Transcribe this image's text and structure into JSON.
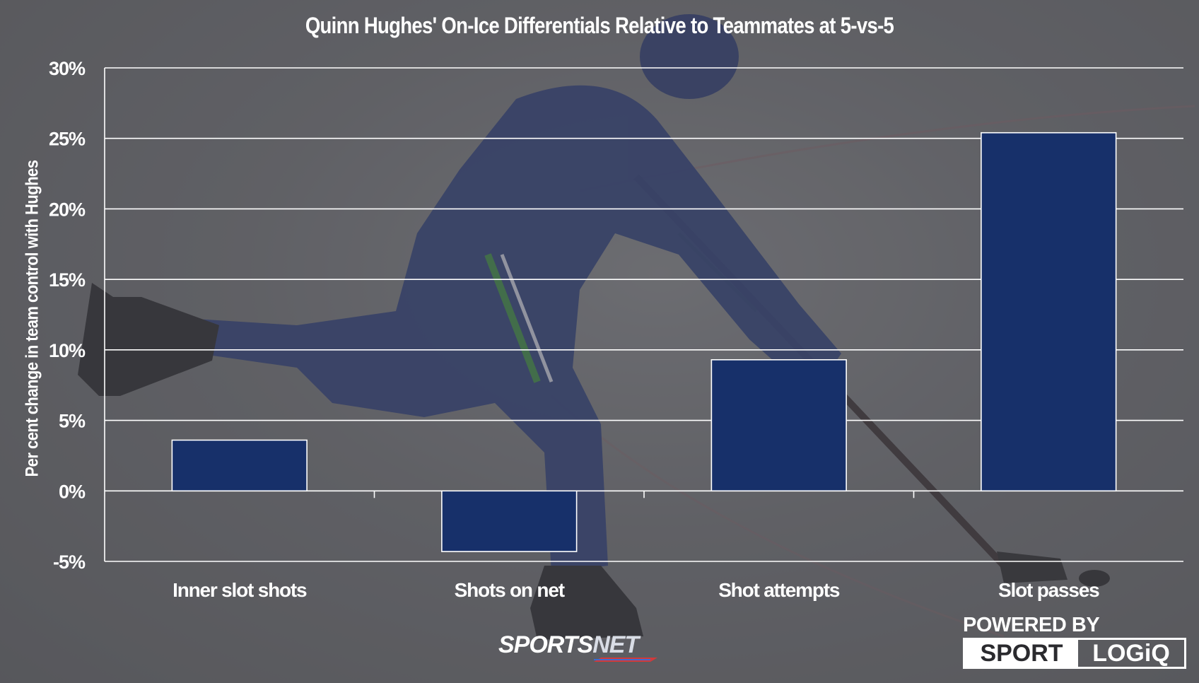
{
  "chart_data": {
    "type": "bar",
    "title": "Quinn Hughes' On-Ice Differentials Relative to Teammates at 5-vs-5",
    "xlabel": "",
    "ylabel": "Per cent change in team control with Hughes",
    "categories": [
      "Inner slot shots",
      "Shots on net",
      "Shot attempts",
      "Slot passes"
    ],
    "values": [
      3.6,
      -4.3,
      9.3,
      25.4
    ],
    "ylim": [
      -5,
      30
    ],
    "yticks": [
      -5,
      0,
      5,
      10,
      15,
      20,
      25,
      30
    ],
    "ytick_labels": [
      "-5%",
      "0%",
      "5%",
      "10%",
      "15%",
      "20%",
      "25%",
      "30%"
    ],
    "grid": true,
    "legend": "none",
    "colors": {
      "bar": "#17306a",
      "bar_stroke": "#ffffff",
      "grid": "#ffffff",
      "text": "#ffffff"
    }
  },
  "branding": {
    "sportsnet_left": "SPORTS",
    "sportsnet_right": "NET",
    "powered_by": "POWERED BY",
    "sport": "SPORT",
    "logiq": "LOGiQ"
  }
}
